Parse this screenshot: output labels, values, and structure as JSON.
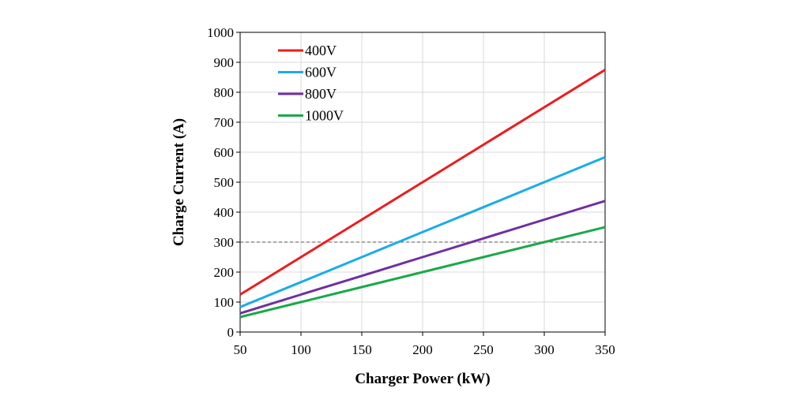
{
  "chart_data": {
    "type": "line",
    "title": "",
    "xlabel": "Charger  Power (kW)",
    "ylabel": "Charge  Current  (A)",
    "xlim": [
      50,
      350
    ],
    "ylim": [
      0,
      1000
    ],
    "x_ticks": [
      50,
      100,
      150,
      200,
      250,
      300,
      350
    ],
    "y_ticks": [
      0,
      100,
      200,
      300,
      400,
      500,
      600,
      700,
      800,
      900,
      1000
    ],
    "x": [
      50,
      100,
      150,
      200,
      250,
      300,
      350
    ],
    "series": [
      {
        "name": "400V",
        "color": "#ee1c1c",
        "values": [
          125,
          250,
          375,
          500,
          625,
          750,
          875
        ]
      },
      {
        "name": "600V",
        "color": "#1aacea",
        "values": [
          83.3,
          166.7,
          250,
          333.3,
          416.7,
          500,
          583.3
        ]
      },
      {
        "name": "800V",
        "color": "#7030a0",
        "values": [
          62.5,
          125,
          187.5,
          250,
          312.5,
          375,
          437.5
        ]
      },
      {
        "name": "1000V",
        "color": "#1aa94a",
        "values": [
          50,
          100,
          150,
          200,
          250,
          300,
          350
        ]
      }
    ],
    "reference_line": {
      "y": 300,
      "style": "dashed",
      "color": "#555555"
    },
    "grid": true,
    "legend_position": "top-left"
  }
}
